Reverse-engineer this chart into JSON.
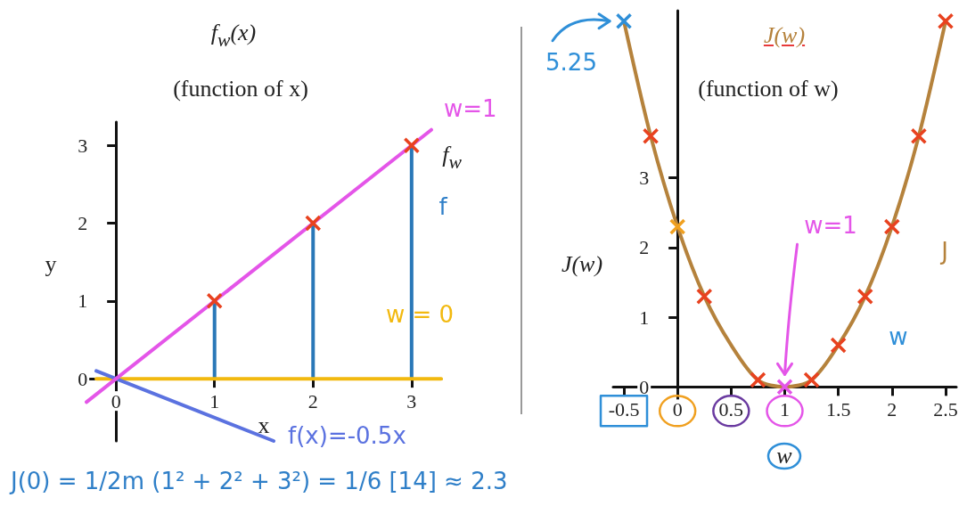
{
  "chart_data": [
    {
      "type": "line",
      "title": "f$_{w}$(x)",
      "subtitle": "(function of x)",
      "xlabel": "x",
      "ylabel": "y",
      "xlim": [
        -0.3,
        3.3
      ],
      "ylim": [
        -0.8,
        3.3
      ],
      "xticks": [
        0,
        1,
        2,
        3
      ],
      "yticks": [
        0,
        1,
        2,
        3
      ],
      "series": [
        {
          "type": "bar",
          "color": "#2a78b8",
          "x": [
            1,
            2,
            3
          ],
          "values": [
            1,
            2,
            3
          ]
        },
        {
          "name": "w = 0",
          "color": "#f2b90f",
          "marker": "none",
          "x": [
            -0.2,
            3.3
          ],
          "values": [
            0,
            0
          ]
        },
        {
          "name": "f(x)=-0.5x",
          "color": "#5b72e0",
          "marker": "none",
          "x": [
            -0.2,
            1.6
          ],
          "values": [
            0.1,
            -0.8
          ]
        },
        {
          "name": "w=1",
          "color": "#e455e8",
          "marker": "none",
          "x": [
            -0.3,
            3.2
          ],
          "values": [
            -0.3,
            3.2
          ]
        },
        {
          "type": "scatter",
          "color": "#e8421f",
          "marker": "cross",
          "x": [
            1,
            2,
            3
          ],
          "values": [
            1,
            2,
            3
          ]
        }
      ],
      "annotations": [
        "f$_{w}$",
        "f",
        "J(0) = 1/2m (1² + 2² + 3²) = 1/6 [14] ≈ 2.3"
      ]
    },
    {
      "type": "line",
      "title": "J(w)",
      "subtitle": "(function of w)",
      "xlabel": "w",
      "ylabel": "J(w)",
      "xlim": [
        -0.6,
        2.6
      ],
      "ylim": [
        -0.2,
        5.4
      ],
      "xticks": [
        -0.5,
        0,
        0.5,
        1,
        1.5,
        2,
        2.5
      ],
      "yticks": [
        0,
        1,
        2,
        3
      ],
      "series": [
        {
          "color": "#b5823c",
          "marker": "none",
          "x": [
            -0.5,
            -0.25,
            0,
            0.25,
            0.5,
            0.75,
            1,
            1.25,
            1.5,
            1.75,
            2,
            2.25,
            2.5
          ],
          "values": [
            5.25,
            3.6,
            2.3,
            1.3,
            0.6,
            0.1,
            0,
            0.1,
            0.6,
            1.3,
            2.3,
            3.6,
            5.25
          ]
        },
        {
          "type": "scatter",
          "color": "#e8421f",
          "marker": "cross",
          "x": [
            -0.25,
            0.25,
            0.75,
            1.25,
            1.5,
            1.75,
            2,
            2.25,
            2.5
          ],
          "values": [
            3.6,
            1.3,
            0.1,
            0.1,
            0.6,
            1.3,
            2.3,
            3.6,
            5.25
          ]
        },
        {
          "type": "scatter",
          "color": "#2f8fd8",
          "marker": "cross",
          "x": [
            -0.5
          ],
          "values": [
            5.25
          ]
        },
        {
          "type": "scatter",
          "color": "#f0a020",
          "marker": "cross",
          "x": [
            0
          ],
          "values": [
            2.3
          ]
        },
        {
          "type": "scatter",
          "color": "#e455e8",
          "marker": "cross",
          "x": [
            1
          ],
          "values": [
            0
          ]
        }
      ],
      "annotations": [
        "5.25",
        "w=1",
        "J",
        "w"
      ]
    }
  ]
}
